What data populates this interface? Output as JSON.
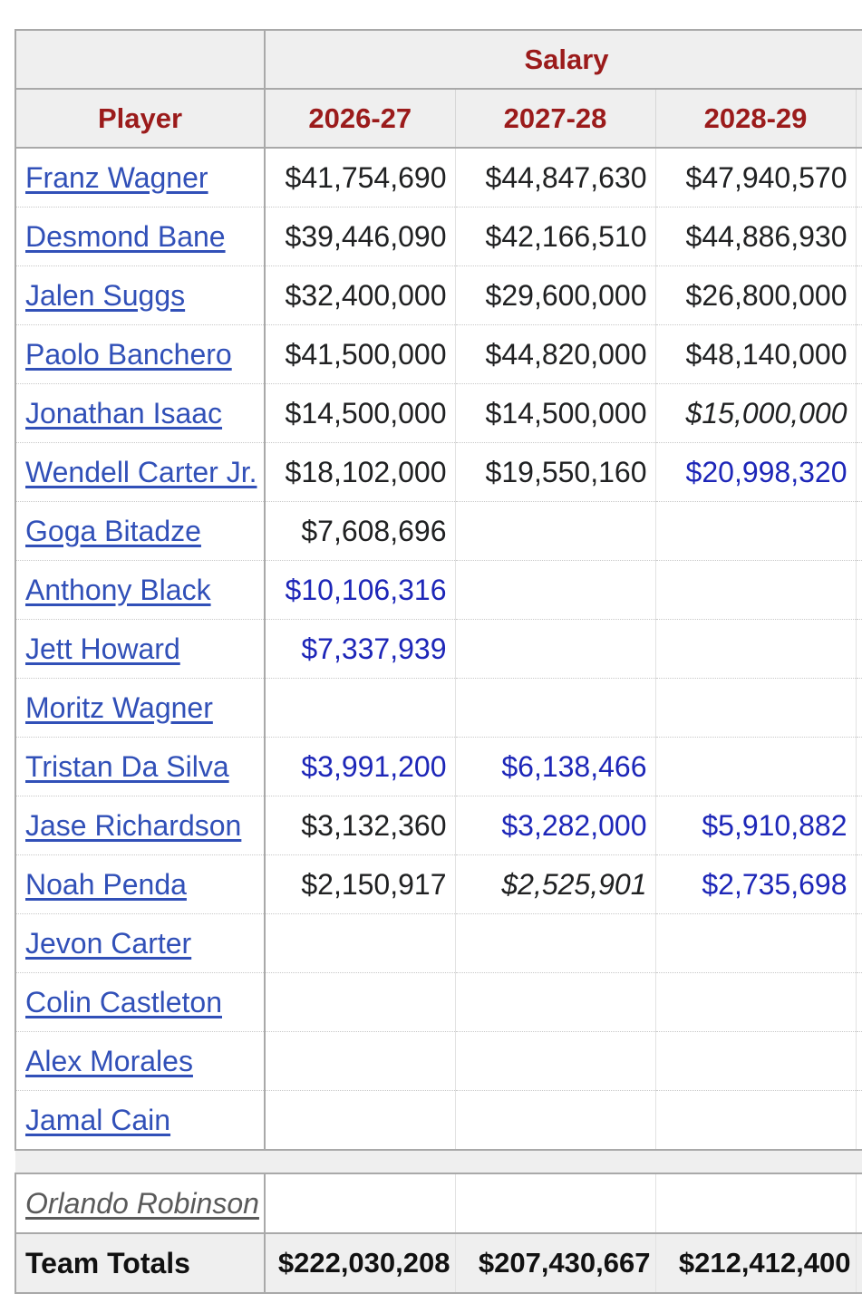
{
  "table": {
    "group_header": "Salary",
    "player_header": "Player",
    "years": [
      "2026-27",
      "2027-28",
      "2028-29"
    ],
    "rows": [
      {
        "player": "Franz Wagner",
        "y1": "$41,754,690",
        "y2": "$44,847,630",
        "y3": "$47,940,570"
      },
      {
        "player": "Desmond Bane",
        "y1": "$39,446,090",
        "y2": "$42,166,510",
        "y3": "$44,886,930"
      },
      {
        "player": "Jalen Suggs",
        "y1": "$32,400,000",
        "y2": "$29,600,000",
        "y3": "$26,800,000"
      },
      {
        "player": "Paolo Banchero",
        "y1": "$41,500,000",
        "y2": "$44,820,000",
        "y3": "$48,140,000"
      },
      {
        "player": "Jonathan Isaac",
        "y1": "$14,500,000",
        "y2": "$14,500,000",
        "y3": "$15,000,000"
      },
      {
        "player": "Wendell Carter Jr.",
        "y1": "$18,102,000",
        "y2": "$19,550,160",
        "y3": "$20,998,320"
      },
      {
        "player": "Goga Bitadze",
        "y1": "$7,608,696",
        "y2": "",
        "y3": ""
      },
      {
        "player": "Anthony Black",
        "y1": "$10,106,316",
        "y2": "",
        "y3": ""
      },
      {
        "player": "Jett Howard",
        "y1": "$7,337,939",
        "y2": "",
        "y3": ""
      },
      {
        "player": "Moritz Wagner",
        "y1": "",
        "y2": "",
        "y3": ""
      },
      {
        "player": "Tristan Da Silva",
        "y1": "$3,991,200",
        "y2": "$6,138,466",
        "y3": ""
      },
      {
        "player": "Jase Richardson",
        "y1": "$3,132,360",
        "y2": "$3,282,000",
        "y3": "$5,910,882"
      },
      {
        "player": "Noah Penda",
        "y1": "$2,150,917",
        "y2": "$2,525,901",
        "y3": "$2,735,698"
      },
      {
        "player": "Jevon Carter",
        "y1": "",
        "y2": "",
        "y3": ""
      },
      {
        "player": "Colin Castleton",
        "y1": "",
        "y2": "",
        "y3": ""
      },
      {
        "player": "Alex Morales",
        "y1": "",
        "y2": "",
        "y3": ""
      },
      {
        "player": "Jamal Cain",
        "y1": "",
        "y2": "",
        "y3": ""
      }
    ],
    "extra_row": {
      "player": "Orlando Robinson",
      "y1": "",
      "y2": "",
      "y3": ""
    },
    "totals": {
      "label": "Team Totals",
      "y1": "$222,030,208",
      "y2": "$207,430,667",
      "y3": "$212,412,400"
    }
  },
  "colors": {
    "header_text": "#9b1b1b",
    "link": "#3150b8",
    "option_value": "#1d26b8",
    "header_bg": "#efefef"
  }
}
